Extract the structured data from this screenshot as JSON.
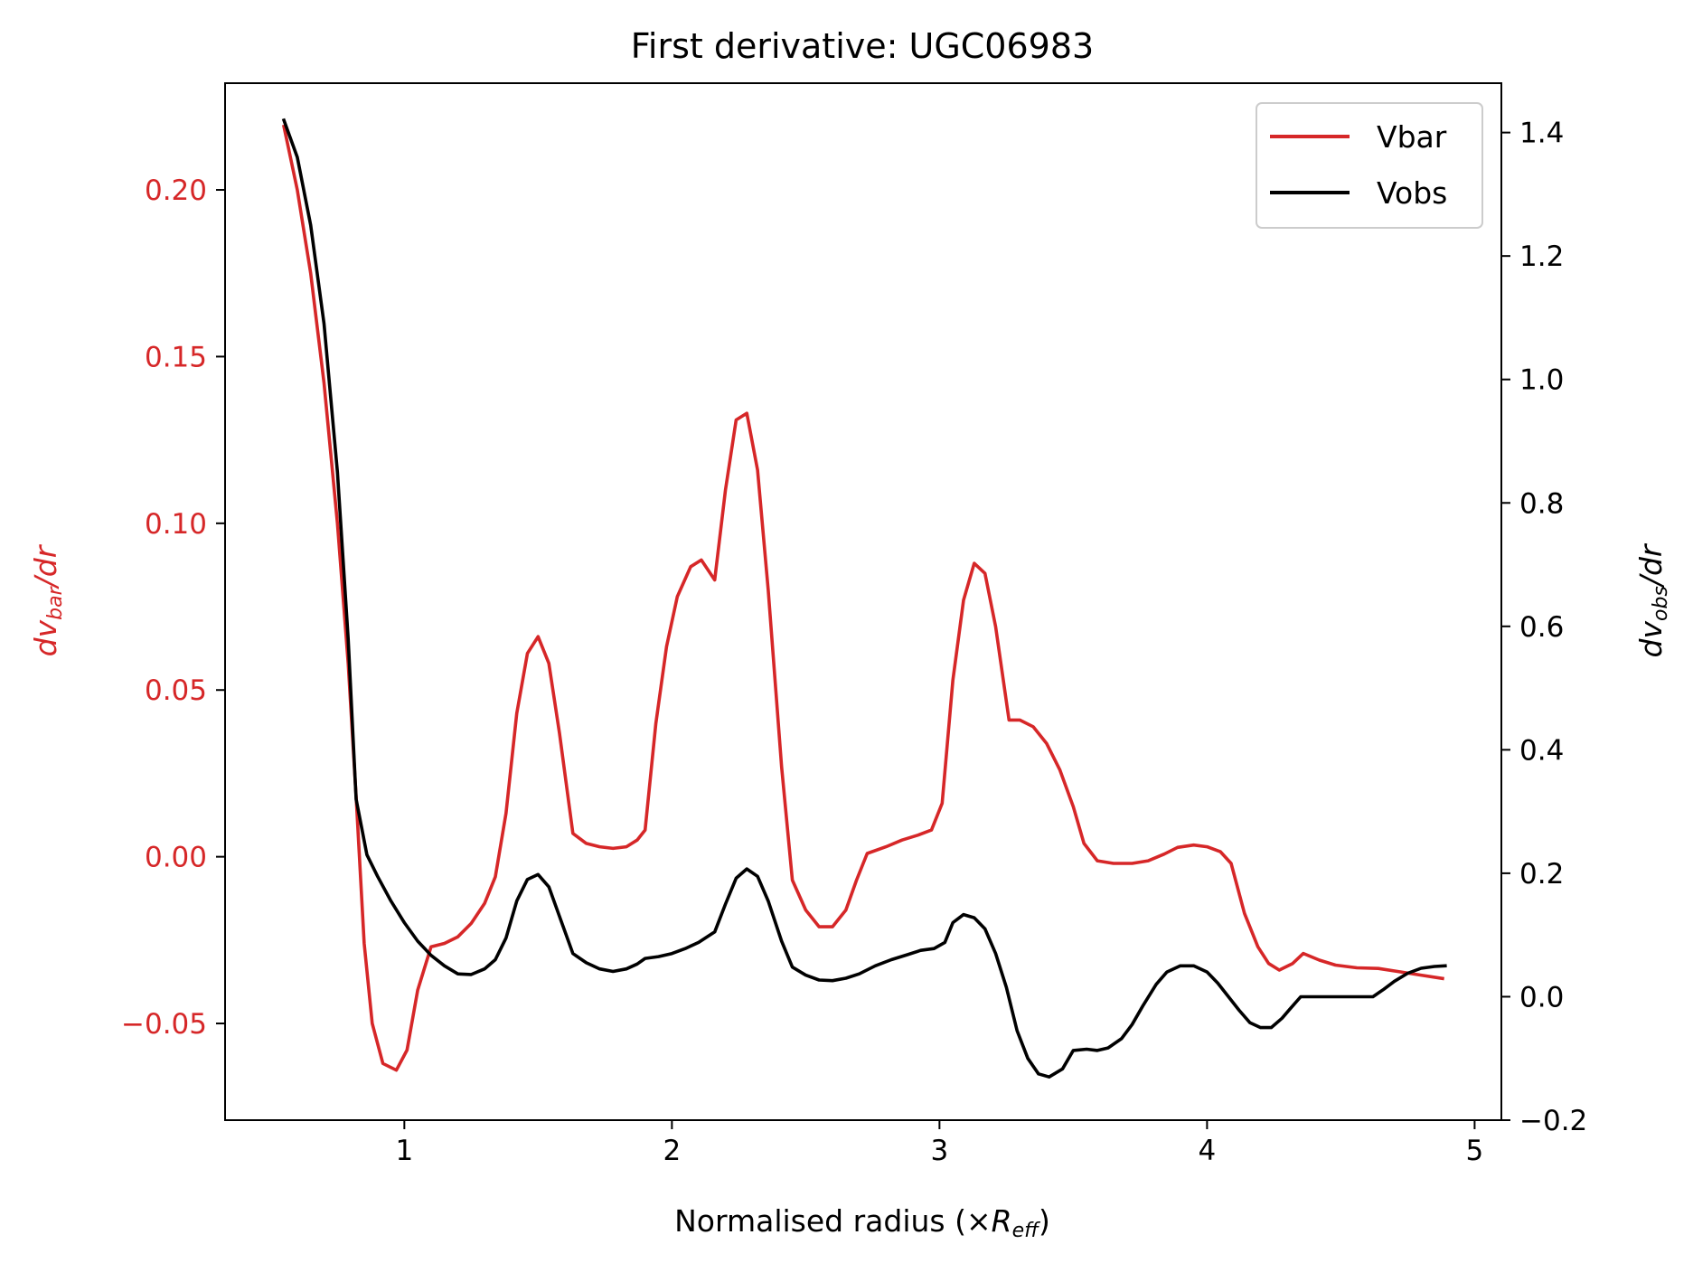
{
  "chart_data": {
    "type": "line",
    "title": "First derivative: UGC06983",
    "xlabel": "Normalised radius (×R_eff)",
    "xlabel_prefix": "Normalised radius (×",
    "xlabel_sym": "R",
    "xlabel_sub": "eff",
    "xlabel_suffix": ")",
    "ylabel_left": "dv_bar/dr",
    "ylabel_left_sym": "dv",
    "ylabel_left_sub": "bar",
    "ylabel_left_tail": "/dr",
    "ylabel_right": "dv_obs/dr",
    "ylabel_right_sym": "dv",
    "ylabel_right_sub": "obs",
    "ylabel_right_tail": "/dr",
    "xlim": [
      0.33,
      5.1
    ],
    "ylim_left": [
      -0.079,
      0.232
    ],
    "ylim_right": [
      -0.2,
      1.48
    ],
    "xticks": [
      1,
      2,
      3,
      4,
      5
    ],
    "xtick_labels": [
      "1",
      "2",
      "3",
      "4",
      "5"
    ],
    "yticks_left": [
      -0.05,
      0.0,
      0.05,
      0.1,
      0.15,
      0.2
    ],
    "ytick_left_labels": [
      "−0.05",
      "0.00",
      "0.05",
      "0.10",
      "0.15",
      "0.20"
    ],
    "yticks_right": [
      -0.2,
      0.0,
      0.2,
      0.4,
      0.6,
      0.8,
      1.0,
      1.2,
      1.4
    ],
    "ytick_right_labels": [
      "−0.2",
      "0.0",
      "0.2",
      "0.4",
      "0.6",
      "0.8",
      "1.0",
      "1.2",
      "1.4"
    ],
    "legend_position": "top-right",
    "series": [
      {
        "name": "Vbar",
        "axis": "left",
        "color": "#d62728",
        "points": [
          [
            0.55,
            0.219
          ],
          [
            0.6,
            0.2
          ],
          [
            0.65,
            0.175
          ],
          [
            0.7,
            0.142
          ],
          [
            0.75,
            0.1
          ],
          [
            0.79,
            0.058
          ],
          [
            0.82,
            0.018
          ],
          [
            0.85,
            -0.026
          ],
          [
            0.88,
            -0.05
          ],
          [
            0.92,
            -0.062
          ],
          [
            0.97,
            -0.064
          ],
          [
            1.01,
            -0.058
          ],
          [
            1.05,
            -0.04
          ],
          [
            1.1,
            -0.027
          ],
          [
            1.15,
            -0.026
          ],
          [
            1.2,
            -0.024
          ],
          [
            1.25,
            -0.02
          ],
          [
            1.3,
            -0.014
          ],
          [
            1.34,
            -0.006
          ],
          [
            1.38,
            0.013
          ],
          [
            1.42,
            0.043
          ],
          [
            1.46,
            0.061
          ],
          [
            1.5,
            0.066
          ],
          [
            1.54,
            0.058
          ],
          [
            1.58,
            0.037
          ],
          [
            1.63,
            0.007
          ],
          [
            1.68,
            0.004
          ],
          [
            1.73,
            0.003
          ],
          [
            1.78,
            0.0025
          ],
          [
            1.83,
            0.003
          ],
          [
            1.87,
            0.005
          ],
          [
            1.9,
            0.008
          ],
          [
            1.94,
            0.04
          ],
          [
            1.98,
            0.063
          ],
          [
            2.02,
            0.078
          ],
          [
            2.07,
            0.087
          ],
          [
            2.11,
            0.089
          ],
          [
            2.16,
            0.083
          ],
          [
            2.2,
            0.11
          ],
          [
            2.24,
            0.131
          ],
          [
            2.28,
            0.133
          ],
          [
            2.32,
            0.116
          ],
          [
            2.36,
            0.08
          ],
          [
            2.41,
            0.027
          ],
          [
            2.45,
            -0.007
          ],
          [
            2.5,
            -0.016
          ],
          [
            2.55,
            -0.021
          ],
          [
            2.6,
            -0.021
          ],
          [
            2.65,
            -0.016
          ],
          [
            2.69,
            -0.007
          ],
          [
            2.73,
            0.001
          ],
          [
            2.8,
            0.003
          ],
          [
            2.86,
            0.005
          ],
          [
            2.92,
            0.0065
          ],
          [
            2.97,
            0.008
          ],
          [
            3.01,
            0.016
          ],
          [
            3.05,
            0.053
          ],
          [
            3.09,
            0.077
          ],
          [
            3.13,
            0.088
          ],
          [
            3.17,
            0.085
          ],
          [
            3.21,
            0.069
          ],
          [
            3.26,
            0.041
          ],
          [
            3.3,
            0.041
          ],
          [
            3.35,
            0.039
          ],
          [
            3.4,
            0.034
          ],
          [
            3.45,
            0.026
          ],
          [
            3.5,
            0.015
          ],
          [
            3.54,
            0.004
          ],
          [
            3.59,
            -0.0012
          ],
          [
            3.65,
            -0.002
          ],
          [
            3.72,
            -0.002
          ],
          [
            3.78,
            -0.0012
          ],
          [
            3.84,
            0.0008
          ],
          [
            3.89,
            0.0028
          ],
          [
            3.95,
            0.0035
          ],
          [
            4.0,
            0.003
          ],
          [
            4.05,
            0.0015
          ],
          [
            4.09,
            -0.002
          ],
          [
            4.14,
            -0.017
          ],
          [
            4.19,
            -0.027
          ],
          [
            4.23,
            -0.032
          ],
          [
            4.27,
            -0.034
          ],
          [
            4.32,
            -0.032
          ],
          [
            4.36,
            -0.029
          ],
          [
            4.42,
            -0.031
          ],
          [
            4.48,
            -0.0325
          ],
          [
            4.56,
            -0.0333
          ],
          [
            4.64,
            -0.0335
          ],
          [
            4.72,
            -0.0345
          ],
          [
            4.8,
            -0.0355
          ],
          [
            4.88,
            -0.0365
          ]
        ]
      },
      {
        "name": "Vobs",
        "axis": "right",
        "color": "#000000",
        "points": [
          [
            0.55,
            1.42
          ],
          [
            0.6,
            1.36
          ],
          [
            0.65,
            1.25
          ],
          [
            0.7,
            1.09
          ],
          [
            0.75,
            0.85
          ],
          [
            0.79,
            0.58
          ],
          [
            0.82,
            0.32
          ],
          [
            0.86,
            0.23
          ],
          [
            0.9,
            0.195
          ],
          [
            0.95,
            0.155
          ],
          [
            1.0,
            0.12
          ],
          [
            1.05,
            0.09
          ],
          [
            1.1,
            0.067
          ],
          [
            1.15,
            0.05
          ],
          [
            1.2,
            0.037
          ],
          [
            1.25,
            0.036
          ],
          [
            1.3,
            0.045
          ],
          [
            1.34,
            0.06
          ],
          [
            1.38,
            0.095
          ],
          [
            1.42,
            0.155
          ],
          [
            1.46,
            0.19
          ],
          [
            1.5,
            0.198
          ],
          [
            1.54,
            0.178
          ],
          [
            1.58,
            0.13
          ],
          [
            1.63,
            0.07
          ],
          [
            1.68,
            0.055
          ],
          [
            1.73,
            0.045
          ],
          [
            1.78,
            0.041
          ],
          [
            1.83,
            0.045
          ],
          [
            1.87,
            0.053
          ],
          [
            1.9,
            0.062
          ],
          [
            1.95,
            0.065
          ],
          [
            2.0,
            0.07
          ],
          [
            2.05,
            0.078
          ],
          [
            2.1,
            0.088
          ],
          [
            2.16,
            0.105
          ],
          [
            2.2,
            0.15
          ],
          [
            2.24,
            0.192
          ],
          [
            2.28,
            0.207
          ],
          [
            2.32,
            0.195
          ],
          [
            2.36,
            0.155
          ],
          [
            2.41,
            0.09
          ],
          [
            2.45,
            0.048
          ],
          [
            2.5,
            0.035
          ],
          [
            2.55,
            0.027
          ],
          [
            2.6,
            0.026
          ],
          [
            2.65,
            0.03
          ],
          [
            2.7,
            0.037
          ],
          [
            2.76,
            0.05
          ],
          [
            2.82,
            0.06
          ],
          [
            2.88,
            0.068
          ],
          [
            2.93,
            0.075
          ],
          [
            2.98,
            0.078
          ],
          [
            3.02,
            0.088
          ],
          [
            3.05,
            0.12
          ],
          [
            3.09,
            0.133
          ],
          [
            3.13,
            0.128
          ],
          [
            3.17,
            0.11
          ],
          [
            3.21,
            0.07
          ],
          [
            3.25,
            0.015
          ],
          [
            3.29,
            -0.055
          ],
          [
            3.33,
            -0.1
          ],
          [
            3.37,
            -0.125
          ],
          [
            3.41,
            -0.13
          ],
          [
            3.46,
            -0.117
          ],
          [
            3.5,
            -0.087
          ],
          [
            3.55,
            -0.085
          ],
          [
            3.59,
            -0.087
          ],
          [
            3.63,
            -0.083
          ],
          [
            3.68,
            -0.068
          ],
          [
            3.72,
            -0.045
          ],
          [
            3.76,
            -0.015
          ],
          [
            3.81,
            0.02
          ],
          [
            3.85,
            0.04
          ],
          [
            3.9,
            0.05
          ],
          [
            3.95,
            0.05
          ],
          [
            4.0,
            0.04
          ],
          [
            4.04,
            0.022
          ],
          [
            4.08,
            0.0
          ],
          [
            4.12,
            -0.022
          ],
          [
            4.16,
            -0.042
          ],
          [
            4.2,
            -0.05
          ],
          [
            4.24,
            -0.05
          ],
          [
            4.28,
            -0.035
          ],
          [
            4.31,
            -0.02
          ],
          [
            4.35,
            0.0
          ],
          [
            4.42,
            0.0
          ],
          [
            4.5,
            0.0
          ],
          [
            4.58,
            0.0
          ],
          [
            4.62,
            0.0
          ],
          [
            4.66,
            0.012
          ],
          [
            4.7,
            0.025
          ],
          [
            4.75,
            0.038
          ],
          [
            4.8,
            0.046
          ],
          [
            4.85,
            0.049
          ],
          [
            4.89,
            0.05
          ]
        ]
      }
    ]
  }
}
